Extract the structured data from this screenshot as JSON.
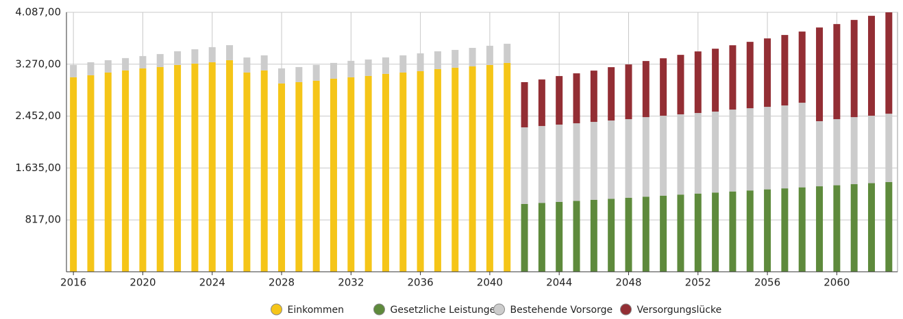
{
  "chart_data": {
    "type": "stacked_bar",
    "x": [
      2016,
      2017,
      2018,
      2019,
      2020,
      2021,
      2022,
      2023,
      2024,
      2025,
      2026,
      2027,
      2028,
      2029,
      2030,
      2031,
      2032,
      2033,
      2034,
      2035,
      2036,
      2037,
      2038,
      2039,
      2040,
      2041,
      2042,
      2043,
      2044,
      2045,
      2046,
      2047,
      2048,
      2049,
      2050,
      2051,
      2052,
      2053,
      2054,
      2055,
      2056,
      2057,
      2058,
      2059,
      2060,
      2061,
      2062,
      2063
    ],
    "xlim": [
      2015.6,
      2063.5
    ],
    "xticks": [
      2016,
      2020,
      2024,
      2028,
      2032,
      2036,
      2040,
      2044,
      2048,
      2052,
      2056,
      2060
    ],
    "ylim": [
      0,
      4087
    ],
    "yticks": [
      {
        "value": 817,
        "label": "817,00"
      },
      {
        "value": 1635,
        "label": "1.635,00"
      },
      {
        "value": 2452,
        "label": "2.452,00"
      },
      {
        "value": 3270,
        "label": "3.270,00"
      },
      {
        "value": 4087,
        "label": "4.087,00"
      }
    ],
    "grid": true,
    "legend": "bottom",
    "series": [
      {
        "name": "Einkommen",
        "color": "#f5c518",
        "values": [
          3064,
          3096,
          3139,
          3172,
          3204,
          3225,
          3258,
          3279,
          3301,
          3333,
          3139,
          3172,
          2967,
          2988,
          3010,
          3042,
          3064,
          3085,
          3118,
          3139,
          3161,
          3193,
          3215,
          3236,
          3258,
          3290,
          null,
          null,
          null,
          null,
          null,
          null,
          null,
          null,
          null,
          null,
          null,
          null,
          null,
          null,
          null,
          null,
          null,
          null,
          null,
          null,
          null,
          null
        ]
      },
      {
        "name": "Gesetzliche Leistungen",
        "color": "#5e8a3c",
        "values": [
          null,
          null,
          null,
          null,
          null,
          null,
          null,
          null,
          null,
          null,
          null,
          null,
          null,
          null,
          null,
          null,
          null,
          null,
          null,
          null,
          null,
          null,
          null,
          null,
          null,
          null,
          1068,
          1084,
          1101,
          1117,
          1134,
          1150,
          1166,
          1183,
          1199,
          1216,
          1232,
          1248,
          1265,
          1281,
          1298,
          1314,
          1330,
          1347,
          1363,
          1380,
          1396,
          1413
        ]
      },
      {
        "name": "Bestehende Vorsorge",
        "color": "#cccccc",
        "values": [
          194,
          205,
          194,
          194,
          194,
          205,
          216,
          226,
          237,
          237,
          237,
          237,
          237,
          237,
          248,
          248,
          259,
          259,
          259,
          270,
          280,
          280,
          280,
          291,
          302,
          302,
          1207,
          1212,
          1217,
          1222,
          1227,
          1233,
          1238,
          1253,
          1259,
          1264,
          1269,
          1275,
          1290,
          1295,
          1300,
          1306,
          1333,
          1025,
          1041,
          1056,
          1062,
          1077
        ]
      },
      {
        "name": "Versorgungslücke",
        "color": "#932e34",
        "values": [
          null,
          null,
          null,
          null,
          null,
          null,
          null,
          null,
          null,
          null,
          null,
          null,
          null,
          null,
          null,
          null,
          null,
          null,
          null,
          null,
          null,
          null,
          null,
          null,
          null,
          null,
          712,
          733,
          765,
          787,
          808,
          840,
          862,
          884,
          905,
          937,
          970,
          991,
          1013,
          1046,
          1078,
          1110,
          1121,
          1476,
          1498,
          1531,
          1574,
          1597
        ]
      }
    ]
  }
}
